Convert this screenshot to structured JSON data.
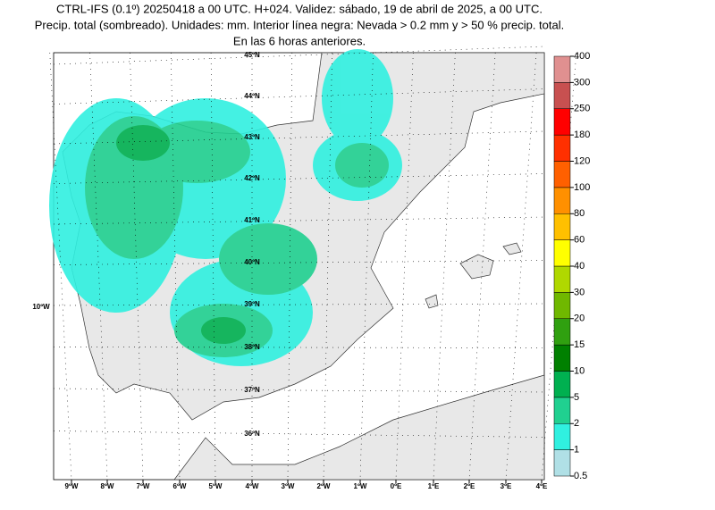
{
  "header": {
    "lines": [
      "CTRL-IFS (0.1º) 20250418 a 00 UTC. H+024. Validez: sábado, 19 de abril de 2025, a 00 UTC.",
      "Precip. total (sombreado). Unidades: mm. Interior línea negra: Nevada > 0.2 mm y > 50 % precip. total.",
      "En las 6 horas anteriores."
    ]
  },
  "map": {
    "lat_labels": [
      "45ºN",
      "44ºN",
      "43ºN",
      "42ºN",
      "41ºN",
      "40ºN",
      "39ºN",
      "38ºN",
      "37ºN",
      "36ºN"
    ],
    "side_label": "10ºW",
    "lon_labels": [
      "9ºW",
      "8ºW",
      "7ºW",
      "6ºW",
      "5ºW",
      "4ºW",
      "3ºW",
      "2ºW",
      "1ºW",
      "0ºE",
      "1ºE",
      "2ºE",
      "3ºE",
      "4ºE"
    ]
  },
  "colorbar": {
    "levels": [
      "0.5",
      "1",
      "2",
      "5",
      "10",
      "15",
      "20",
      "30",
      "40",
      "60",
      "80",
      "100",
      "120",
      "180",
      "250",
      "300",
      "400"
    ],
    "colors": [
      "#b0e0e6",
      "#30f0e0",
      "#20d090",
      "#00b050",
      "#008000",
      "#30a010",
      "#70b800",
      "#b0d800",
      "#ffff00",
      "#ffc000",
      "#ff9000",
      "#ff6000",
      "#ff3000",
      "#ff0000",
      "#c85050",
      "#e09090",
      "#f0c8c8"
    ]
  }
}
